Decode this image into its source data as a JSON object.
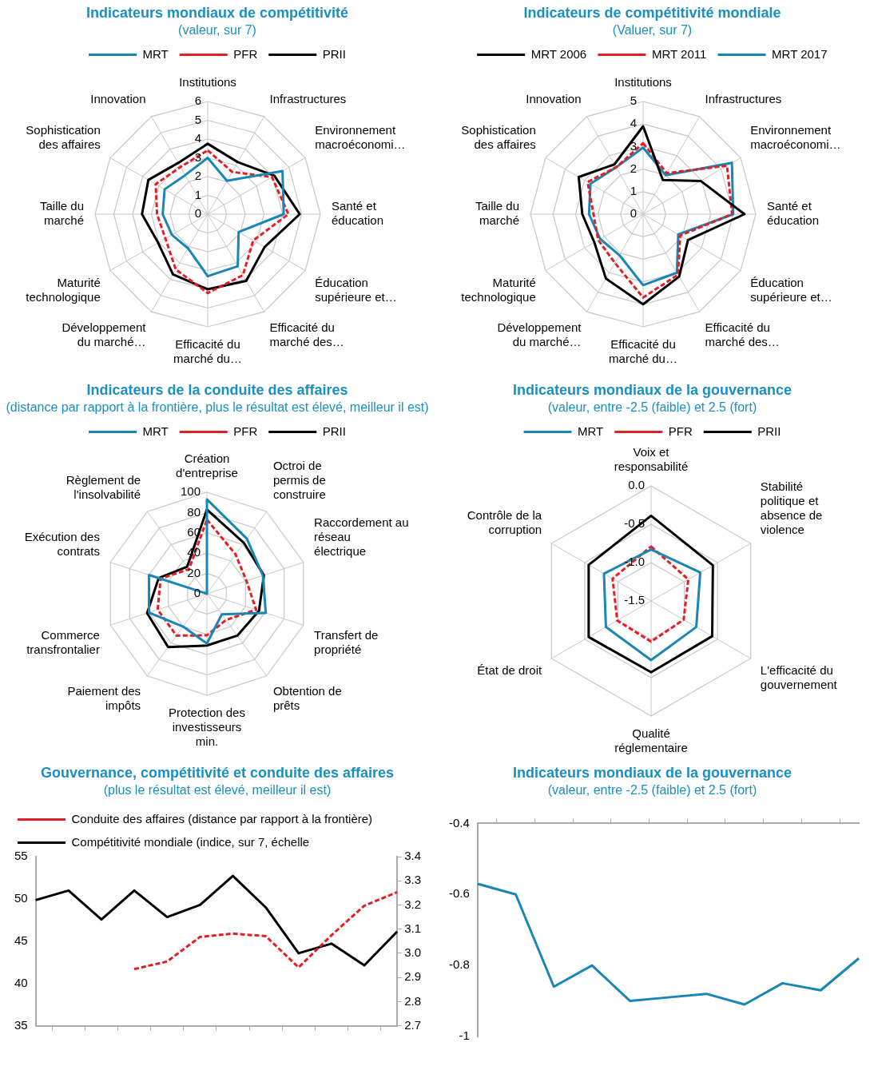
{
  "chart_data": [
    {
      "type": "radar",
      "title": "Indicateurs mondiaux de compétitivité",
      "subtitle": "(valeur, sur 7)",
      "categories": [
        "Institutions",
        "Infrastructures",
        "Environnement macroéconomi…",
        "Santé et éducation",
        "Éducation supérieure et…",
        "Efficacité du marché des…",
        "Efficacité du marché du…",
        "Développement du marché…",
        "Maturité technologique",
        "Taille du marché",
        "Sophistication des affaires",
        "Innovation"
      ],
      "ylim": [
        0,
        6
      ],
      "yticks": [
        0,
        1,
        2,
        3,
        4,
        5,
        6
      ],
      "grid": true,
      "legend": "top",
      "marker": "none",
      "series": [
        {
          "name": "MRT",
          "color": "#1a86b4",
          "values": [
            3.0,
            2.05,
            4.6,
            4.05,
            1.9,
            3.2,
            3.3,
            2.1,
            2.2,
            2.4,
            2.65,
            2.4
          ]
        },
        {
          "name": "PFR",
          "color": "#e31e24",
          "line_style": "dashed",
          "values": [
            3.4,
            2.6,
            3.95,
            4.3,
            2.8,
            3.75,
            4.2,
            3.4,
            2.6,
            2.7,
            3.2,
            2.9
          ]
        },
        {
          "name": "PRII",
          "color": "#000000",
          "values": [
            3.75,
            3.2,
            4.1,
            4.9,
            3.5,
            4.1,
            4.0,
            3.7,
            3.05,
            3.5,
            3.65,
            3.15
          ]
        }
      ]
    },
    {
      "type": "radar",
      "title": "Indicateurs de compétitivité mondiale",
      "subtitle": "(Valuer, sur 7)",
      "categories": [
        "Institutions",
        "Infrastructures",
        "Environnement macroéconomi…",
        "Santé et éducation",
        "Éducation supérieure et…",
        "Efficacité du marché des…",
        "Efficacité du marché du…",
        "Développement du marché…",
        "Maturité technologique",
        "Taille du marché",
        "Sophistication des affaires",
        "Innovation"
      ],
      "ylim": [
        0,
        5
      ],
      "yticks": [
        0,
        1,
        2,
        3,
        4,
        5
      ],
      "grid": true,
      "legend": "top",
      "marker": "none",
      "series": [
        {
          "name": "MRT 2006",
          "color": "#000000",
          "values": [
            3.9,
            1.75,
            2.95,
            4.5,
            2.3,
            3.2,
            4.0,
            3.3,
            2.5,
            2.7,
            3.3,
            2.55
          ]
        },
        {
          "name": "MRT 2011",
          "color": "#e31e24",
          "line_style": "dashed",
          "values": [
            3.15,
            2.1,
            4.3,
            3.95,
            1.9,
            3.1,
            3.7,
            2.5,
            2.3,
            2.2,
            2.85,
            2.4
          ]
        },
        {
          "name": "MRT 2017",
          "color": "#1a86b4",
          "values": [
            2.95,
            2.0,
            4.55,
            4.0,
            1.8,
            3.0,
            3.15,
            2.1,
            2.2,
            2.4,
            2.7,
            2.4
          ]
        }
      ]
    },
    {
      "type": "radar",
      "title": "Indicateurs de la conduite des affaires",
      "subtitle": "(distance par rapport à la frontière, plus le résultat est élevé, meilleur il est)",
      "categories": [
        "Création d'entreprise",
        "Octroi de permis de construire",
        "Raccordement au réseau électrique",
        "Transfert de propriété",
        "Obtention de prêts",
        "Protection des investisseurs min.",
        "Paiement des impôts",
        "Commerce transfrontalier",
        "Exécution des contrats",
        "Règlement de l'insolvabilité"
      ],
      "ylim": [
        0,
        100
      ],
      "yticks": [
        0,
        20,
        40,
        60,
        80,
        100
      ],
      "grid": true,
      "legend": "top",
      "marker": "none",
      "series": [
        {
          "name": "MRT",
          "color": "#1a86b4",
          "values": [
            93,
            67,
            58,
            61,
            25,
            49,
            40,
            60,
            60,
            0
          ]
        },
        {
          "name": "PFR",
          "color": "#e31e24",
          "line_style": "dashed",
          "values": [
            73,
            48,
            41,
            51,
            32,
            41,
            51,
            51,
            48,
            30
          ]
        },
        {
          "name": "PRII",
          "color": "#000000",
          "values": [
            83,
            62,
            59,
            54,
            51,
            51,
            65,
            62,
            50,
            33
          ]
        }
      ]
    },
    {
      "type": "radar",
      "title": "Indicateurs mondiaux de la gouvernance",
      "subtitle": "(valeur, entre -2.5 (faible) et 2.5 (fort)",
      "categories": [
        "Voix et responsabilité",
        "Stabilité politique et absence de violence",
        "L'efficacité du gouvernement",
        "Qualité réglementaire",
        "État de droit",
        "Contrôle de la corruption"
      ],
      "ylim": [
        -1.5,
        0
      ],
      "yticks": [
        {
          "value": -1.5,
          "label": "-1.5"
        },
        {
          "value": -1,
          "label": "-1.0"
        },
        {
          "value": -0.5,
          "label": "-0.5"
        },
        {
          "value": 0,
          "label": "0.0"
        }
      ],
      "grid": true,
      "legend": "top",
      "marker": "none",
      "series": [
        {
          "name": "MRT",
          "color": "#1a86b4",
          "values": [
            -0.83,
            -0.76,
            -0.82,
            -0.73,
            -0.82,
            -0.79
          ]
        },
        {
          "name": "PFR",
          "color": "#e31e24",
          "line_style": "dashed",
          "values": [
            -0.79,
            -0.94,
            -1.01,
            -0.97,
            -0.99,
            -0.92
          ]
        },
        {
          "name": "PRII",
          "color": "#000000",
          "values": [
            -0.39,
            -0.57,
            -0.58,
            -0.57,
            -0.56,
            -0.56
          ]
        }
      ]
    },
    {
      "type": "line",
      "title": "Gouvernance, compétitivité et conduite des affaires",
      "subtitle": "(plus le résultat est élevé, meilleur il est)",
      "categories": [
        null,
        null,
        null,
        null,
        null,
        null,
        null,
        null,
        null,
        null,
        null,
        null
      ],
      "ylim": [
        35,
        55
      ],
      "yticks": [
        35,
        40,
        45,
        50,
        55
      ],
      "y2lim": [
        2.7,
        3.4
      ],
      "y2ticks": [
        2.7,
        2.8,
        2.9,
        {
          "value": 3,
          "label": "3.0"
        },
        3.1,
        3.2,
        3.3,
        3.4
      ],
      "grid": false,
      "legend": "top left",
      "marker": "none",
      "series": [
        {
          "name": "Conduite des affaires (distance par rapport à la frontière)",
          "color": "#e31e24",
          "line_style": "dashed",
          "values": [
            null,
            null,
            null,
            41.7,
            42.6,
            45.5,
            45.9,
            45.6,
            41.9,
            45.7,
            49.2,
            50.8
          ]
        },
        {
          "name": "Compétitivité mondiale (indice, sur 7, échelle",
          "color": "#000000",
          "axis": "y2",
          "values": [
            3.22,
            3.26,
            3.14,
            3.26,
            3.15,
            3.2,
            3.32,
            3.19,
            3.0,
            3.04,
            2.95,
            3.09
          ]
        }
      ]
    },
    {
      "type": "line",
      "title": "Indicateurs mondiaux de la gouvernance",
      "subtitle": "(valeur, entre -2.5 (faible) et 2.5 (fort)",
      "categories": [
        null,
        null,
        null,
        null,
        null,
        null,
        null,
        null,
        null,
        null,
        null
      ],
      "ylim": [
        -1,
        -0.4
      ],
      "yticks": [
        -1,
        -0.8,
        -0.6,
        -0.4
      ],
      "grid": false,
      "marker": "none",
      "series": [
        {
          "color": "#1a86b4",
          "values": [
            -0.57,
            -0.6,
            -0.86,
            -0.8,
            -0.9,
            -0.89,
            -0.88,
            -0.91,
            -0.85,
            -0.87,
            -0.78
          ]
        }
      ]
    }
  ]
}
